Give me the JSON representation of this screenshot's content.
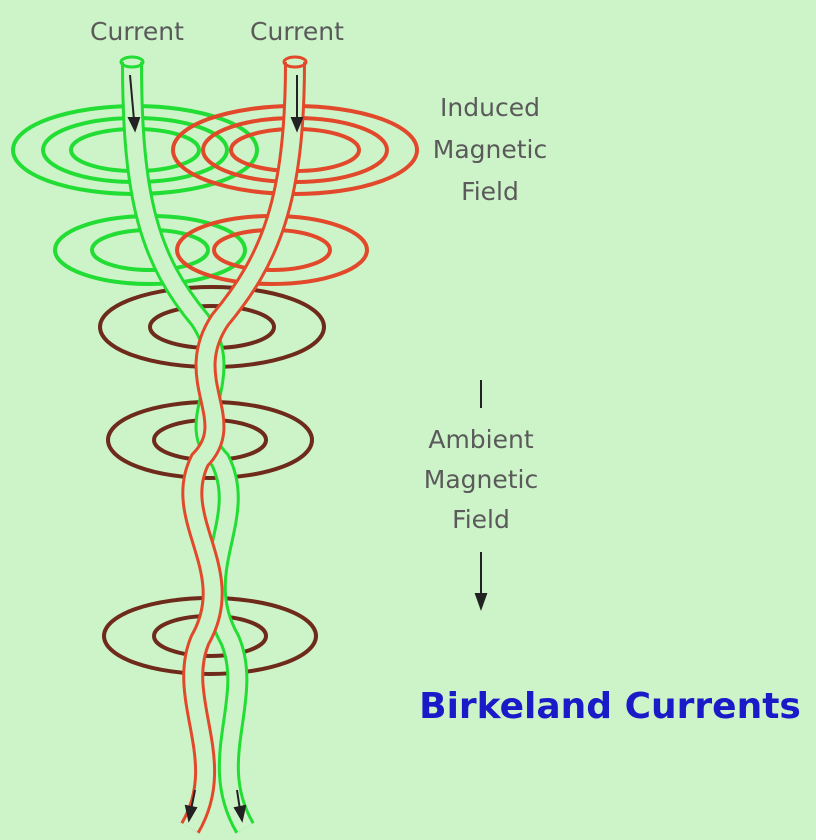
{
  "labels": {
    "current_left": "Current",
    "current_right": "Current",
    "induced_field": [
      "Induced",
      "Magnetic",
      "Field"
    ],
    "ambient_field": [
      "Ambient",
      "Magnetic",
      "Field"
    ],
    "title": "Birkeland Currents"
  }
}
